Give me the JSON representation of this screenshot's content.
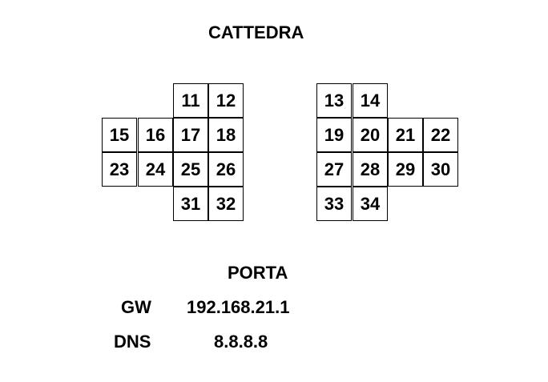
{
  "header": {
    "title": "CATTEDRA"
  },
  "seats": {
    "c11": "11",
    "c12": "12",
    "c13": "13",
    "c14": "14",
    "c15": "15",
    "c16": "16",
    "c17": "17",
    "c18": "18",
    "c19": "19",
    "c20": "20",
    "c21": "21",
    "c22": "22",
    "c23": "23",
    "c24": "24",
    "c25": "25",
    "c26": "26",
    "c27": "27",
    "c28": "28",
    "c29": "29",
    "c30": "30",
    "c31": "31",
    "c32": "32",
    "c33": "33",
    "c34": "34"
  },
  "footer": {
    "title": "PORTA"
  },
  "network": {
    "gw_label": "GW",
    "gw_value": "192.168.21.1",
    "dns_label": "DNS",
    "dns_value": "8.8.8.8"
  }
}
